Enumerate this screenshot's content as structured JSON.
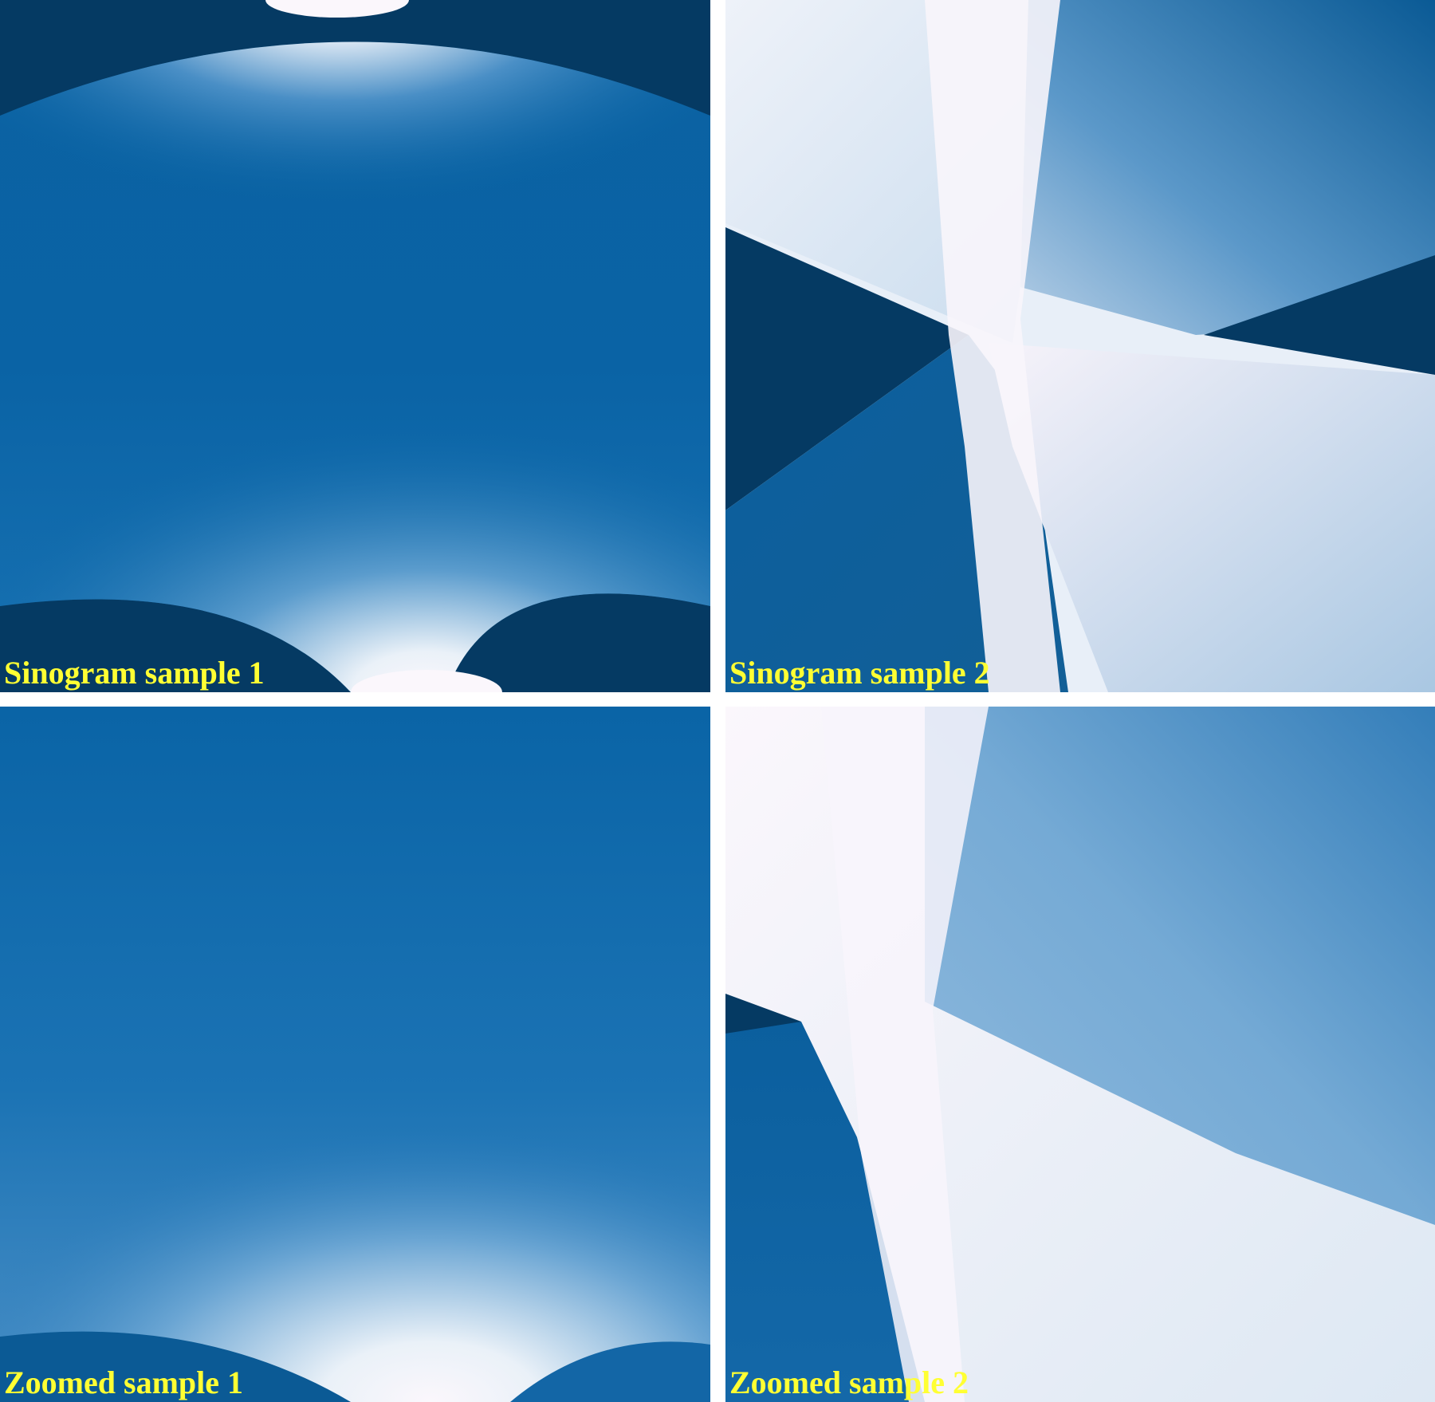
{
  "panels": [
    {
      "caption": "Sinogram sample 1"
    },
    {
      "caption": "Sinogram sample 2"
    },
    {
      "caption": "Zoomed sample 1"
    },
    {
      "caption": "Zoomed sample 2"
    }
  ],
  "colors": {
    "caption": "#ffff33",
    "separator": "#ffffff",
    "dark_blue": "#053a63",
    "mid_blue": "#0a67a8",
    "light": "#f7f3fa"
  }
}
